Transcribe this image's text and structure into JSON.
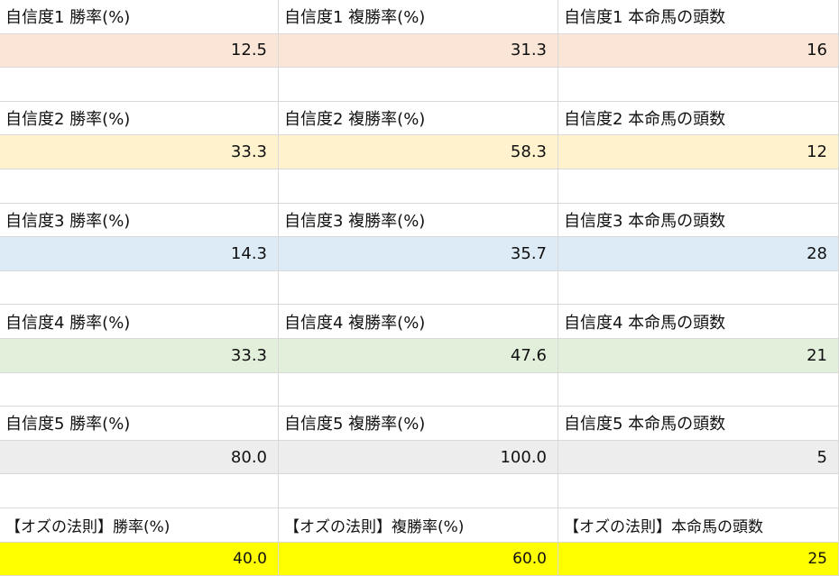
{
  "groups": [
    {
      "headers": [
        "自信度1 勝率(%)",
        "自信度1 複勝率(%)",
        "自信度1 本命馬の頭数"
      ],
      "values": [
        "12.5",
        "31.3",
        "16"
      ]
    },
    {
      "headers": [
        "自信度2 勝率(%)",
        "自信度2 複勝率(%)",
        "自信度2 本命馬の頭数"
      ],
      "values": [
        "33.3",
        "58.3",
        "12"
      ]
    },
    {
      "headers": [
        "自信度3 勝率(%)",
        "自信度3 複勝率(%)",
        "自信度3 本命馬の頭数"
      ],
      "values": [
        "14.3",
        "35.7",
        "28"
      ]
    },
    {
      "headers": [
        "自信度4 勝率(%)",
        "自信度4 複勝率(%)",
        "自信度4 本命馬の頭数"
      ],
      "values": [
        "33.3",
        "47.6",
        "21"
      ]
    },
    {
      "headers": [
        "自信度5 勝率(%)",
        "自信度5 複勝率(%)",
        "自信度5 本命馬の頭数"
      ],
      "values": [
        "80.0",
        "100.0",
        "5"
      ]
    },
    {
      "headers": [
        "【オズの法則】勝率(%)",
        "【オズの法則】複勝率(%)",
        "【オズの法則】本命馬の頭数"
      ],
      "values": [
        "40.0",
        "60.0",
        "25"
      ]
    }
  ]
}
